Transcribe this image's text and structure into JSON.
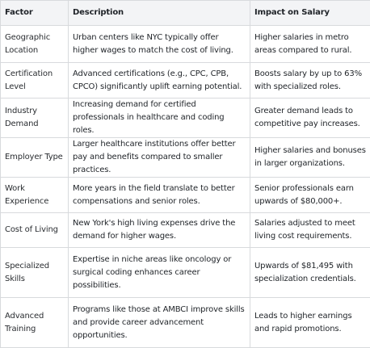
{
  "table": {
    "headers": [
      "Factor",
      "Description",
      "Impact on Salary"
    ],
    "rows": [
      {
        "factor": "Geographic Location",
        "description": "Urban centers like NYC typically offer higher wages to match the cost of living.",
        "impact": "Higher salaries in metro areas compared to rural."
      },
      {
        "factor": "Certification Level",
        "description": "Advanced certifications (e.g., CPC, CPB, CPCO) significantly uplift earning potential.",
        "impact": "Boosts salary by up to 63% with specialized roles."
      },
      {
        "factor": "Industry Demand",
        "description": "Increasing demand for certified professionals in healthcare and coding roles.",
        "impact": "Greater demand leads to competitive pay increases."
      },
      {
        "factor": "Employer Type",
        "description": "Larger healthcare institutions offer better pay and benefits compared to smaller practices.",
        "impact": "Higher salaries and bonuses in larger organizations."
      },
      {
        "factor": "Work Experience",
        "description": "More years in the field translate to better compensations and senior roles.",
        "impact": "Senior professionals earn upwards of $80,000+."
      },
      {
        "factor": "Cost of Living",
        "description": "New York's high living expenses drive the demand for higher wages.",
        "impact": "Salaries adjusted to meet living cost requirements."
      },
      {
        "factor": "Specialized Skills",
        "description": "Expertise in niche areas like oncology or surgical coding enhances career possibilities.",
        "impact": "Upwards of $81,495 with specialization credentials."
      },
      {
        "factor": "Advanced Training",
        "description": "Programs like those at AMBCI improve skills and provide career advancement opportunities.",
        "impact": "Leads to higher earnings and rapid promotions."
      }
    ]
  }
}
